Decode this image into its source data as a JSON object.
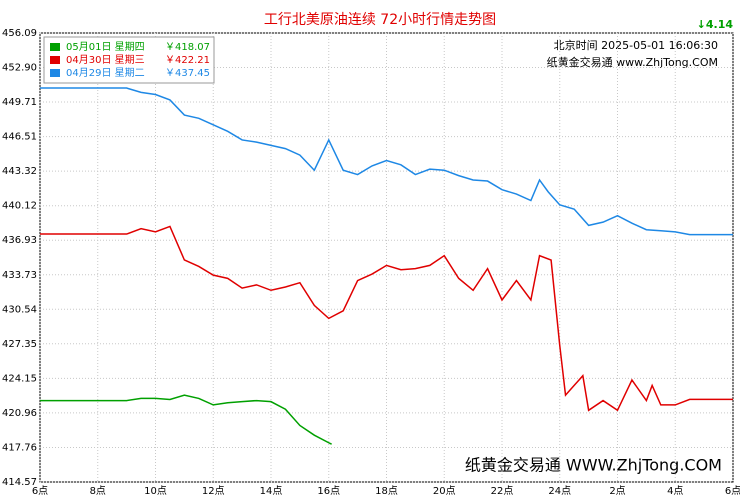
{
  "chart_data": {
    "type": "line",
    "title": "工行北美原油连续 72小时行情走势图",
    "change": "↓4.14",
    "timestamp": "北京时间 2025-05-01 16:06:30",
    "source": "纸黄金交易通 www.ZhjTong.COM",
    "watermark": "纸黄金交易通 WWW.ZhjTong.COM",
    "xlim": [
      6,
      30
    ],
    "xticks": [
      {
        "value": 6,
        "label": "6点"
      },
      {
        "value": 8,
        "label": "8点"
      },
      {
        "value": 10,
        "label": "10点"
      },
      {
        "value": 12,
        "label": "12点"
      },
      {
        "value": 14,
        "label": "14点"
      },
      {
        "value": 16,
        "label": "16点"
      },
      {
        "value": 18,
        "label": "18点"
      },
      {
        "value": 20,
        "label": "20点"
      },
      {
        "value": 22,
        "label": "22点"
      },
      {
        "value": 24,
        "label": "24点"
      },
      {
        "value": 26,
        "label": "2点"
      },
      {
        "value": 28,
        "label": "4点"
      },
      {
        "value": 30,
        "label": "6点"
      }
    ],
    "ylim": [
      414.57,
      456.09
    ],
    "yticks": [
      456.09,
      {
        "value": 452.9,
        "label": "452.90"
      },
      449.71,
      446.51,
      443.32,
      440.12,
      436.93,
      433.73,
      430.54,
      427.35,
      424.15,
      420.96,
      417.76,
      414.57
    ],
    "grid": true,
    "series": [
      {
        "name": "05月01日 星期四",
        "price": "￥418.07",
        "color": "#00a000",
        "x": [
          6,
          9,
          9.5,
          10,
          10.5,
          11,
          11.5,
          12,
          12.5,
          13,
          13.5,
          14,
          14.5,
          15,
          15.5,
          16,
          16.1
        ],
        "values": [
          422.1,
          422.1,
          422.3,
          422.3,
          422.2,
          422.6,
          422.3,
          421.7,
          421.9,
          422.0,
          422.1,
          422.0,
          421.3,
          419.8,
          418.9,
          418.2,
          418.07
        ]
      },
      {
        "name": "04月30日 星期三",
        "price": "￥422.21",
        "color": "#e00000",
        "x": [
          6,
          9,
          9.5,
          10,
          10.5,
          11,
          11.5,
          12,
          12.5,
          13,
          13.5,
          14,
          14.5,
          15,
          15.5,
          16,
          16.5,
          17,
          17.5,
          18,
          18.5,
          19,
          19.5,
          20,
          20.5,
          21,
          21.5,
          22,
          22.5,
          23,
          23.3,
          23.7,
          24,
          24.2,
          24.5,
          24.8,
          25,
          25.5,
          26,
          26.5,
          27,
          27.2,
          27.5,
          28,
          28.5,
          30
        ],
        "values": [
          437.5,
          437.5,
          438.0,
          437.7,
          438.2,
          435.1,
          434.5,
          433.7,
          433.4,
          432.5,
          432.8,
          432.3,
          432.6,
          433.0,
          430.9,
          429.7,
          430.4,
          433.2,
          433.8,
          434.6,
          434.2,
          434.3,
          434.6,
          435.5,
          433.4,
          432.3,
          434.3,
          431.4,
          433.2,
          431.4,
          435.5,
          435.1,
          427.2,
          422.6,
          423.5,
          424.4,
          421.2,
          422.1,
          421.2,
          424.0,
          422.1,
          423.5,
          421.7,
          421.7,
          422.21,
          422.21
        ]
      },
      {
        "name": "04月29日 星期二",
        "price": "￥437.45",
        "color": "#1e88e5",
        "x": [
          6,
          9,
          9.5,
          10,
          10.5,
          11,
          11.5,
          12,
          12.5,
          13,
          13.5,
          14,
          14.5,
          15,
          15.5,
          16,
          16.5,
          17,
          17.5,
          18,
          18.5,
          19,
          19.5,
          20,
          20.5,
          21,
          21.5,
          22,
          22.5,
          23,
          23.3,
          23.6,
          24,
          24.5,
          25,
          25.5,
          26,
          26.5,
          27,
          27.5,
          28,
          28.5,
          30
        ],
        "values": [
          451.0,
          451.0,
          450.6,
          450.4,
          449.9,
          448.5,
          448.2,
          447.6,
          447.0,
          446.2,
          446.0,
          445.7,
          445.4,
          444.8,
          443.4,
          446.2,
          443.4,
          443.0,
          443.8,
          444.3,
          443.9,
          443.0,
          443.5,
          443.4,
          442.9,
          442.5,
          442.4,
          441.6,
          441.2,
          440.6,
          442.5,
          441.4,
          440.2,
          439.8,
          438.3,
          438.6,
          439.2,
          438.5,
          437.9,
          437.8,
          437.7,
          437.45,
          437.45
        ]
      }
    ]
  }
}
